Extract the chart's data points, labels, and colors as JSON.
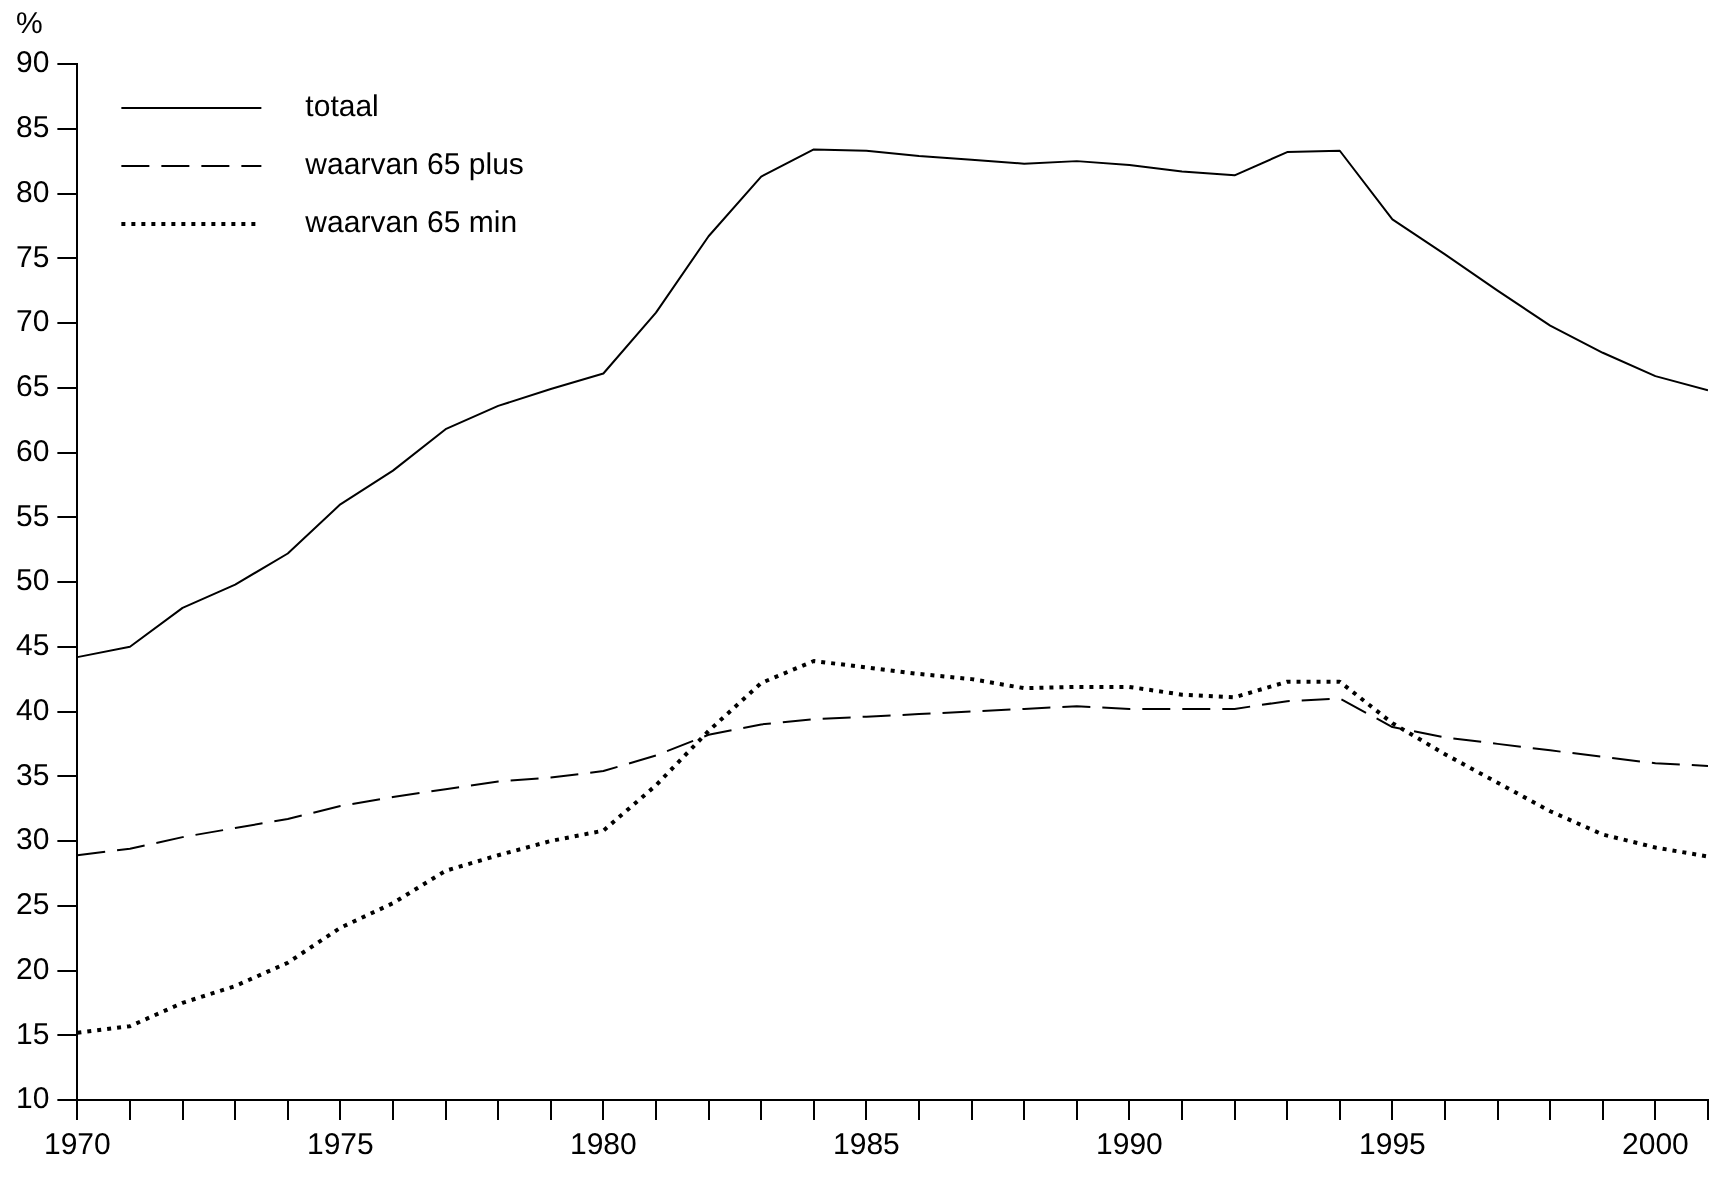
{
  "chart_data": {
    "type": "line",
    "ylabel": "%",
    "x": [
      1970,
      1971,
      1972,
      1973,
      1974,
      1975,
      1976,
      1977,
      1978,
      1979,
      1980,
      1981,
      1982,
      1983,
      1984,
      1985,
      1986,
      1987,
      1988,
      1989,
      1990,
      1991,
      1992,
      1993,
      1994,
      1995,
      1996,
      1997,
      1998,
      1999,
      2000,
      2001
    ],
    "xlim": [
      1970,
      2001
    ],
    "xticks": [
      1970,
      {
        "value": 1971,
        "label": null
      },
      {
        "value": 1972,
        "label": null
      },
      {
        "value": 1973,
        "label": null
      },
      {
        "value": 1974,
        "label": null
      },
      1975,
      {
        "value": 1976,
        "label": null
      },
      {
        "value": 1977,
        "label": null
      },
      {
        "value": 1978,
        "label": null
      },
      {
        "value": 1979,
        "label": null
      },
      1980,
      {
        "value": 1981,
        "label": null
      },
      {
        "value": 1982,
        "label": null
      },
      {
        "value": 1983,
        "label": null
      },
      {
        "value": 1984,
        "label": null
      },
      1985,
      {
        "value": 1986,
        "label": null
      },
      {
        "value": 1987,
        "label": null
      },
      {
        "value": 1988,
        "label": null
      },
      {
        "value": 1989,
        "label": null
      },
      1990,
      {
        "value": 1991,
        "label": null
      },
      {
        "value": 1992,
        "label": null
      },
      {
        "value": 1993,
        "label": null
      },
      {
        "value": 1994,
        "label": null
      },
      1995,
      {
        "value": 1996,
        "label": null
      },
      {
        "value": 1997,
        "label": null
      },
      {
        "value": 1998,
        "label": null
      },
      {
        "value": 1999,
        "label": null
      },
      2000,
      {
        "value": 2001,
        "label": null
      }
    ],
    "ylim": [
      10,
      90
    ],
    "yticks": [
      10,
      15,
      20,
      25,
      30,
      35,
      40,
      45,
      50,
      55,
      60,
      65,
      70,
      75,
      80,
      85,
      90
    ],
    "grid": false,
    "legend": "top left",
    "marker": "none",
    "series": [
      {
        "name": "totaal",
        "color": "#000000",
        "line_style": "solid",
        "values": [
          44.2,
          45.0,
          48.0,
          49.8,
          52.2,
          56.0,
          58.6,
          61.8,
          63.6,
          64.9,
          66.1,
          70.8,
          76.7,
          81.3,
          83.4,
          83.3,
          82.9,
          82.6,
          82.3,
          82.5,
          82.2,
          81.7,
          81.4,
          83.2,
          83.3,
          78.0,
          75.3,
          72.5,
          69.8,
          67.7,
          65.9,
          64.8
        ]
      },
      {
        "name": "waarvan 65 plus",
        "color": "#000000",
        "line_style": "dashed",
        "values": [
          28.9,
          29.4,
          30.3,
          31.0,
          31.7,
          32.7,
          33.4,
          34.0,
          34.6,
          34.9,
          35.4,
          36.6,
          38.2,
          39.0,
          39.4,
          39.6,
          39.8,
          40.0,
          40.2,
          40.4,
          40.2,
          40.2,
          40.2,
          40.8,
          41.0,
          38.8,
          38.0,
          37.5,
          37.0,
          36.5,
          36.0,
          35.8
        ]
      },
      {
        "name": "waarvan 65 min",
        "color": "#000000",
        "line_style": "dotted",
        "values": [
          15.2,
          15.7,
          17.5,
          18.8,
          20.6,
          23.3,
          25.2,
          27.7,
          28.9,
          30.0,
          30.8,
          34.3,
          38.5,
          42.2,
          43.9,
          43.4,
          42.9,
          42.5,
          41.8,
          41.9,
          41.9,
          41.3,
          41.1,
          42.3,
          42.3,
          39.1,
          36.7,
          34.5,
          32.3,
          30.5,
          29.5,
          28.8
        ]
      }
    ]
  }
}
